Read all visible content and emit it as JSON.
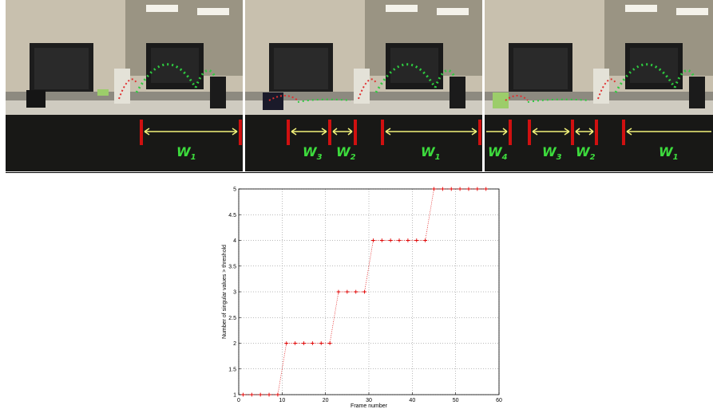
{
  "figure": {
    "panels": [
      {
        "annotations": [
          {
            "label": "W",
            "sub": "1"
          }
        ]
      },
      {
        "annotations": [
          {
            "label": "W",
            "sub": "3"
          },
          {
            "label": "W",
            "sub": "2"
          },
          {
            "label": "W",
            "sub": "1"
          }
        ]
      },
      {
        "annotations": [
          {
            "label": "W",
            "sub": "4"
          },
          {
            "label": "W",
            "sub": "3"
          },
          {
            "label": "W",
            "sub": "2"
          },
          {
            "label": "W",
            "sub": "1"
          }
        ]
      }
    ],
    "colors": {
      "annotation_text": "#3ddc3d",
      "marker_bar": "#d01010",
      "arrow": "#f2f27a",
      "trajectory": "#2ecc40",
      "ball": "#e03030"
    }
  },
  "chart_data": {
    "type": "line",
    "title": "",
    "xlabel": "Frame number",
    "ylabel": "Number of singular values > threshold",
    "xlim": [
      0,
      60
    ],
    "ylim": [
      1,
      5
    ],
    "xticks": [
      "0",
      "10",
      "20",
      "30",
      "40",
      "50",
      "60"
    ],
    "yticks": [
      "1",
      "1.5",
      "2",
      "2.5",
      "3",
      "3.5",
      "4",
      "4.5",
      "5"
    ],
    "grid": true,
    "line_style": "dotted",
    "marker": "+",
    "color": "#e00000",
    "series": [
      {
        "x": [
          1,
          3,
          5,
          7,
          9,
          11,
          13,
          15,
          17,
          19,
          21,
          23,
          25,
          27,
          29,
          31,
          33,
          35,
          37,
          39,
          41,
          43,
          45,
          47,
          49,
          51,
          53,
          55,
          57
        ],
        "y": [
          1,
          1,
          1,
          1,
          1,
          2,
          2,
          2,
          2,
          2,
          2,
          3,
          3,
          3,
          3,
          4,
          4,
          4,
          4,
          4,
          4,
          4,
          5,
          5,
          5,
          5,
          5,
          5,
          5
        ]
      }
    ]
  }
}
